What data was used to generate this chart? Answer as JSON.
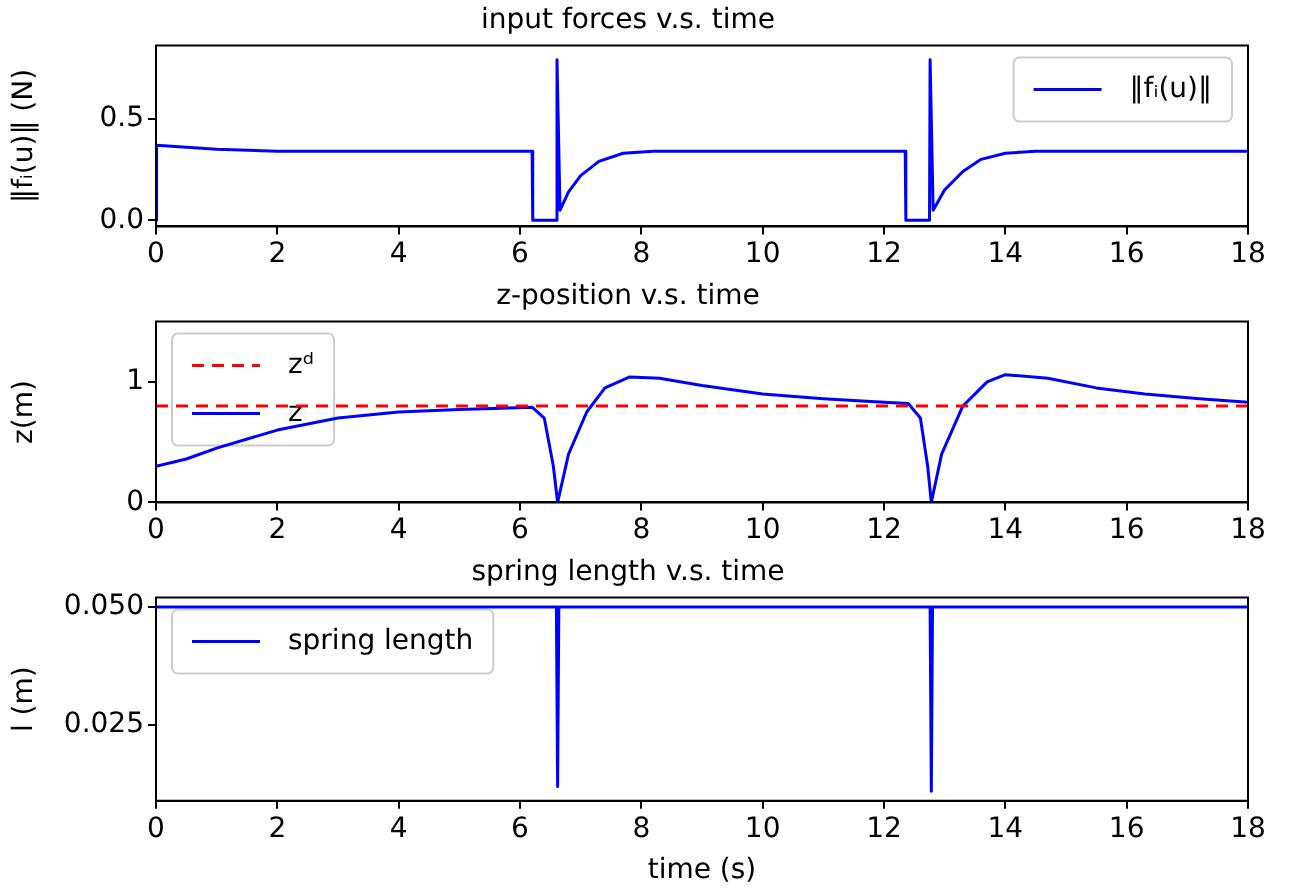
{
  "chart_data": [
    {
      "type": "line",
      "title": "input forces v.s. time",
      "ylabel": "‖fᵢ(u)‖ (N)",
      "xlim": [
        0,
        18
      ],
      "xticks": [
        0,
        2,
        4,
        6,
        8,
        10,
        12,
        14,
        16,
        18
      ],
      "ylim": [
        -0.03,
        0.86
      ],
      "yticks": [
        {
          "value": 0,
          "label": "0.0"
        },
        0.5
      ],
      "legend": "top right",
      "series": [
        {
          "name": "‖fᵢ(u)‖",
          "color": "#0000ff",
          "x": [
            0,
            0.01,
            0.5,
            1,
            2,
            4,
            6.2,
            6.21,
            6.6,
            6.61,
            6.66,
            6.8,
            7,
            7.3,
            7.7,
            8.2,
            10,
            12.35,
            12.36,
            12.75,
            12.76,
            12.81,
            13,
            13.3,
            13.6,
            14,
            14.5,
            16,
            18
          ],
          "values": [
            0,
            0.37,
            0.36,
            0.35,
            0.34,
            0.34,
            0.34,
            0,
            0,
            0.79,
            0.05,
            0.14,
            0.22,
            0.29,
            0.33,
            0.34,
            0.34,
            0.34,
            0,
            0,
            0.79,
            0.05,
            0.15,
            0.24,
            0.3,
            0.33,
            0.34,
            0.34,
            0.34
          ]
        }
      ]
    },
    {
      "type": "line",
      "title": "z-position v.s. time",
      "ylabel": "z(m)",
      "xlim": [
        0,
        18
      ],
      "xticks": [
        0,
        2,
        4,
        6,
        8,
        10,
        12,
        14,
        16,
        18
      ],
      "ylim": [
        0,
        1.5
      ],
      "yticks": [
        0,
        1
      ],
      "legend": "top left",
      "series": [
        {
          "name": "zᵈ",
          "color": "#ff0000",
          "line_style": "dashed",
          "x": [
            0,
            18
          ],
          "values": [
            0.8,
            0.8
          ]
        },
        {
          "name": "z",
          "color": "#0000ff",
          "x": [
            0,
            0.5,
            1,
            2,
            3,
            4,
            5,
            6.2,
            6.4,
            6.55,
            6.62,
            6.8,
            7.1,
            7.4,
            7.8,
            8.3,
            9,
            10,
            11,
            12,
            12.4,
            12.6,
            12.72,
            12.78,
            12.95,
            13.3,
            13.7,
            14,
            14.7,
            15.5,
            16.3,
            17.2,
            18
          ],
          "values": [
            0.3,
            0.36,
            0.45,
            0.6,
            0.7,
            0.75,
            0.77,
            0.79,
            0.7,
            0.3,
            0,
            0.4,
            0.75,
            0.95,
            1.04,
            1.03,
            0.97,
            0.9,
            0.86,
            0.83,
            0.82,
            0.7,
            0.3,
            0,
            0.4,
            0.8,
            1.0,
            1.06,
            1.03,
            0.95,
            0.9,
            0.86,
            0.83
          ]
        }
      ]
    },
    {
      "type": "line",
      "title": "spring length v.s. time",
      "xlabel": "time (s)",
      "ylabel": "l (m)",
      "xlim": [
        0,
        18
      ],
      "xticks": [
        0,
        2,
        4,
        6,
        8,
        10,
        12,
        14,
        16,
        18
      ],
      "ylim": [
        0.009,
        0.052
      ],
      "yticks": [
        {
          "value": 0.025,
          "label": "0.025"
        },
        {
          "value": 0.05,
          "label": "0.050"
        }
      ],
      "legend": "top left",
      "series": [
        {
          "name": "spring length",
          "color": "#0000ff",
          "x": [
            0,
            6.6,
            6.62,
            6.64,
            12.76,
            12.78,
            12.8,
            18
          ],
          "values": [
            0.05,
            0.05,
            0.012,
            0.05,
            0.05,
            0.011,
            0.05,
            0.05
          ]
        }
      ]
    }
  ]
}
